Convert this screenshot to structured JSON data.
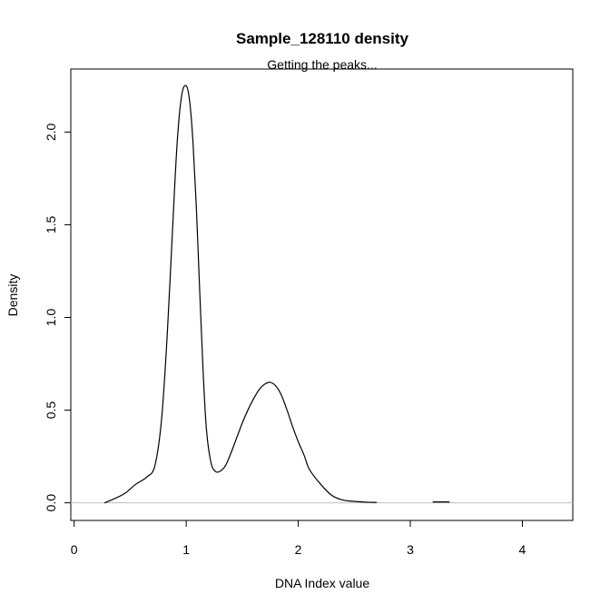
{
  "chart_data": {
    "type": "line",
    "title": "Sample_128110 density",
    "subtitle": "Getting the peaks...",
    "xlabel": "DNA Index value",
    "ylabel": "Density",
    "xlim": [
      -0.03,
      4.45
    ],
    "ylim": [
      -0.095,
      2.34
    ],
    "x_ticks": [
      0,
      1,
      2,
      3,
      4
    ],
    "x_tick_labels": [
      "0",
      "1",
      "2",
      "3",
      "4"
    ],
    "y_ticks": [
      0.0,
      0.5,
      1.0,
      1.5,
      2.0
    ],
    "y_tick_labels": [
      "0.0",
      "0.5",
      "1.0",
      "1.5",
      "2.0"
    ],
    "baseline_y": 0,
    "grid": false,
    "colors": {
      "line": "#000000",
      "baseline": "#bebebe",
      "axis": "#000000"
    },
    "series": [
      {
        "x": [
          0.27,
          0.35,
          0.45,
          0.55,
          0.65,
          0.72,
          0.78,
          0.83,
          0.88,
          0.92,
          0.96,
          1.0,
          1.03,
          1.06,
          1.09,
          1.12,
          1.15,
          1.18,
          1.22,
          1.26,
          1.3,
          1.35,
          1.4,
          1.45,
          1.5,
          1.55,
          1.6,
          1.65,
          1.7,
          1.75,
          1.8,
          1.85,
          1.9,
          1.95,
          2.0,
          2.05,
          2.1,
          2.2,
          2.3,
          2.4,
          2.5,
          2.6,
          2.7
        ],
        "y": [
          0.0,
          0.02,
          0.05,
          0.1,
          0.14,
          0.2,
          0.45,
          0.9,
          1.5,
          1.95,
          2.2,
          2.25,
          2.17,
          1.95,
          1.6,
          1.15,
          0.72,
          0.4,
          0.22,
          0.17,
          0.17,
          0.2,
          0.27,
          0.35,
          0.43,
          0.5,
          0.56,
          0.61,
          0.64,
          0.65,
          0.63,
          0.58,
          0.5,
          0.41,
          0.33,
          0.26,
          0.18,
          0.1,
          0.04,
          0.015,
          0.008,
          0.004,
          0.002
        ]
      },
      {
        "x": [
          3.2,
          3.35
        ],
        "y": [
          0.005,
          0.005
        ]
      }
    ]
  }
}
